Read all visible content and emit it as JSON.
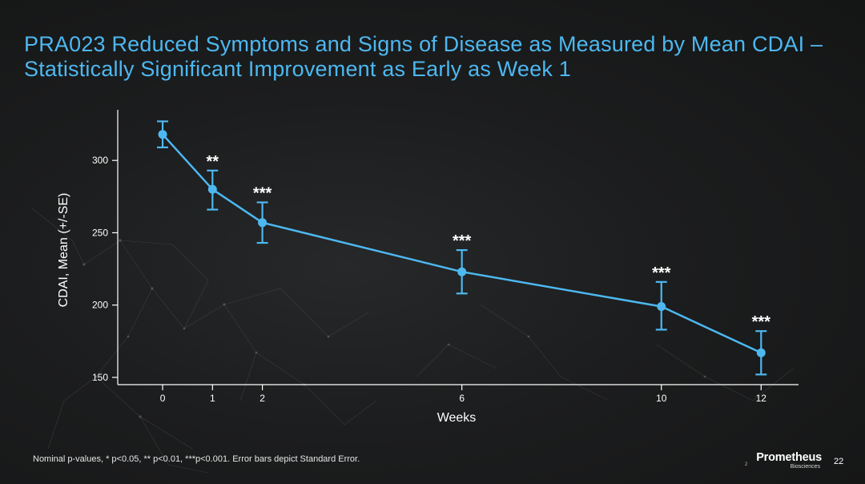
{
  "slide": {
    "title": "PRA023 Reduced Symptoms and Signs of Disease as Measured by Mean CDAI – Statistically Significant Improvement as Early as Week 1",
    "footnote": "Nominal p-values, * p<0.05, ** p<0.01, ***p<0.001. Error bars depict Standard Error.",
    "page_number": "22"
  },
  "logo": {
    "name": "Prometheus",
    "subtitle": "Biosciences",
    "mark": "2"
  },
  "colors": {
    "title": "#4db8f0",
    "series": "#4db8f0",
    "axis": "#ffffff",
    "background": "#1c1d1e"
  },
  "chart_data": {
    "type": "line",
    "title": "",
    "xlabel": "Weeks",
    "ylabel": "CDAI, Mean (+/-SE)",
    "x": [
      0,
      1,
      2,
      6,
      10,
      12
    ],
    "x_ticks": [
      0,
      1,
      2,
      6,
      10,
      12
    ],
    "y_ticks": [
      150,
      200,
      250,
      300
    ],
    "xlim": [
      -0.9,
      12.75
    ],
    "ylim": [
      145,
      335
    ],
    "grid": false,
    "series": [
      {
        "values": [
          318,
          280,
          257,
          223,
          199,
          167
        ],
        "error_upper": [
          327,
          293,
          271,
          238,
          216,
          182
        ],
        "error_lower": [
          309,
          266,
          243,
          208,
          183,
          152
        ],
        "significance": [
          "",
          "**",
          "***",
          "***",
          "***",
          "***"
        ]
      }
    ]
  }
}
